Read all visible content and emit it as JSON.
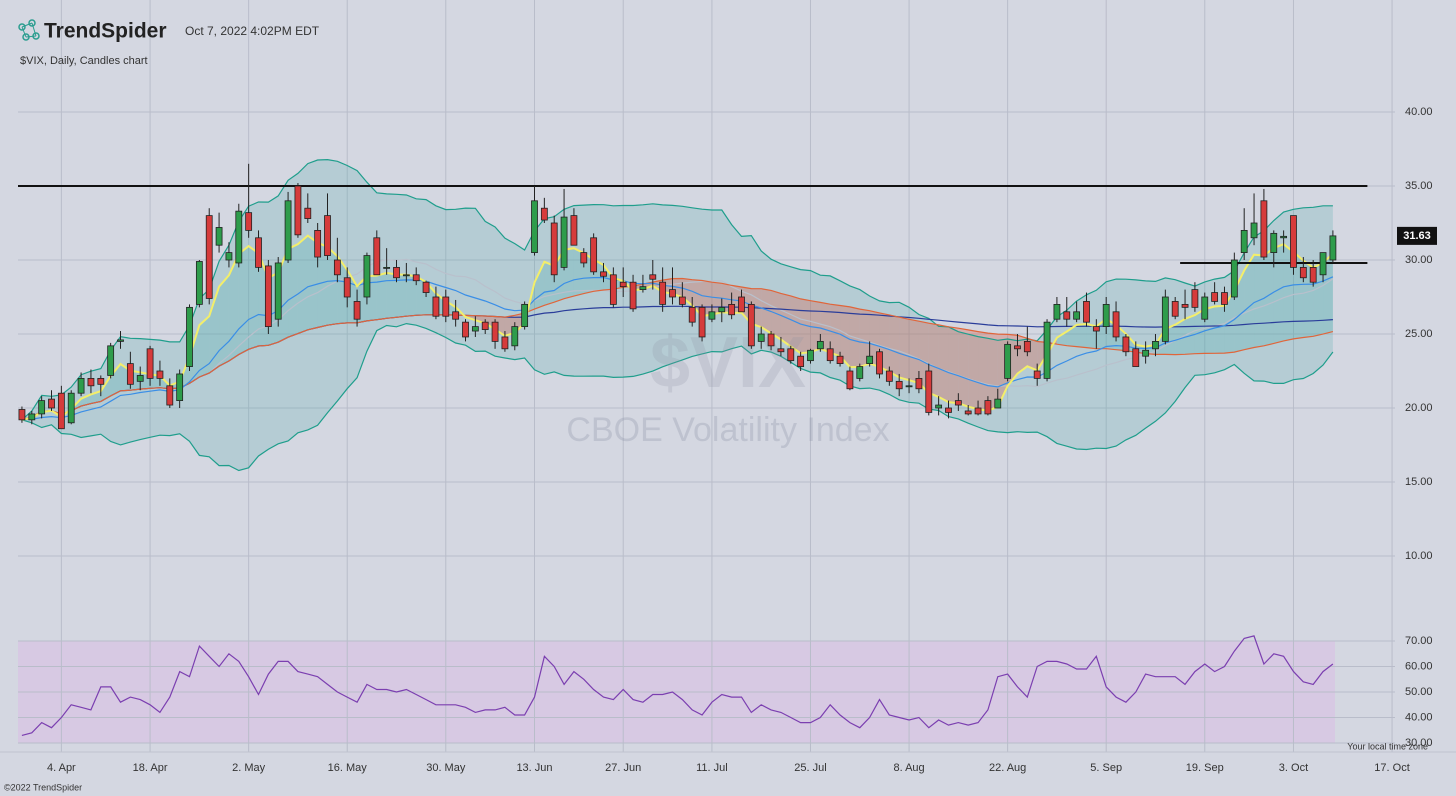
{
  "header": {
    "brand": "TrendSpider",
    "timestamp": "Oct 7, 2022 4:02PM EDT"
  },
  "footer": {
    "copyright": "©2022 TrendSpider",
    "timezone": "Your local time zone"
  },
  "chart_data": {
    "type": "candlestick",
    "subtitle": "$VIX, Daily, Candles chart",
    "watermark": "$VIX",
    "watermark_subtitle": "CBOE Volatility Index",
    "up_color": "#2e9c4b",
    "down_color": "#d63b3b",
    "candles": [
      [
        19.9,
        20.1,
        19.0,
        19.2
      ],
      [
        19.2,
        19.8,
        18.9,
        19.6
      ],
      [
        19.6,
        20.8,
        19.3,
        20.5
      ],
      [
        20.6,
        21.2,
        19.8,
        20.0
      ],
      [
        21.0,
        21.5,
        18.6,
        18.6
      ],
      [
        19.0,
        21.2,
        18.9,
        21.0
      ],
      [
        21.0,
        22.4,
        20.8,
        22.0
      ],
      [
        22.0,
        22.6,
        21.0,
        21.5
      ],
      [
        22.0,
        22.2,
        20.8,
        21.6
      ],
      [
        22.2,
        24.4,
        22.0,
        24.2
      ],
      [
        24.5,
        25.2,
        24.0,
        24.6
      ],
      [
        23.0,
        23.8,
        21.3,
        21.6
      ],
      [
        21.8,
        22.8,
        21.2,
        22.2
      ],
      [
        24.0,
        24.2,
        21.5,
        22.0
      ],
      [
        22.5,
        23.2,
        21.5,
        22.0
      ],
      [
        21.5,
        22.0,
        20.0,
        20.2
      ],
      [
        20.5,
        22.6,
        20.0,
        22.3
      ],
      [
        22.8,
        27.0,
        22.5,
        26.8
      ],
      [
        27.0,
        30.0,
        26.8,
        29.9
      ],
      [
        33.0,
        33.5,
        27.0,
        27.4
      ],
      [
        31.0,
        33.2,
        30.5,
        32.2
      ],
      [
        30.0,
        31.2,
        29.5,
        30.5
      ],
      [
        29.8,
        33.8,
        29.5,
        33.3
      ],
      [
        33.2,
        36.5,
        31.5,
        32.0
      ],
      [
        31.5,
        32.0,
        29.2,
        29.5
      ],
      [
        29.6,
        30.0,
        25.0,
        25.5
      ],
      [
        26.0,
        30.2,
        25.5,
        29.8
      ],
      [
        30.0,
        34.6,
        29.8,
        34.0
      ],
      [
        35.0,
        35.2,
        31.5,
        31.7
      ],
      [
        33.5,
        34.5,
        32.5,
        32.8
      ],
      [
        32.0,
        32.5,
        29.5,
        30.2
      ],
      [
        33.0,
        34.5,
        30.0,
        30.3
      ],
      [
        30.0,
        31.5,
        28.5,
        29.0
      ],
      [
        28.8,
        29.5,
        26.8,
        27.5
      ],
      [
        27.2,
        28.0,
        25.5,
        26.0
      ],
      [
        27.5,
        30.5,
        27.0,
        30.3
      ],
      [
        31.5,
        32.0,
        29.0,
        29.0
      ],
      [
        29.5,
        30.8,
        29.0,
        29.5
      ],
      [
        29.5,
        30.0,
        28.5,
        28.8
      ],
      [
        29.0,
        29.8,
        28.5,
        29.0
      ],
      [
        29.0,
        29.5,
        28.3,
        28.6
      ],
      [
        28.5,
        28.6,
        27.5,
        27.8
      ],
      [
        27.5,
        28.2,
        26.0,
        26.2
      ],
      [
        27.5,
        28.0,
        25.8,
        26.2
      ],
      [
        26.5,
        27.3,
        25.5,
        26.0
      ],
      [
        25.8,
        26.0,
        24.5,
        24.8
      ],
      [
        25.2,
        26.2,
        24.8,
        25.5
      ],
      [
        25.8,
        26.0,
        25.0,
        25.3
      ],
      [
        25.8,
        26.0,
        24.0,
        24.5
      ],
      [
        24.8,
        25.2,
        23.8,
        24.0
      ],
      [
        24.2,
        25.8,
        23.9,
        25.5
      ],
      [
        25.5,
        27.2,
        25.3,
        27.0
      ],
      [
        30.5,
        35.0,
        30.3,
        34.0
      ],
      [
        33.5,
        34.2,
        32.5,
        32.7
      ],
      [
        32.5,
        33.0,
        28.5,
        29.0
      ],
      [
        29.5,
        34.8,
        29.3,
        32.9
      ],
      [
        33.0,
        33.5,
        31.0,
        31.0
      ],
      [
        30.5,
        30.8,
        29.5,
        29.8
      ],
      [
        31.5,
        31.8,
        29.0,
        29.2
      ],
      [
        29.2,
        29.8,
        28.5,
        28.9
      ],
      [
        29.0,
        29.5,
        26.8,
        27.0
      ],
      [
        28.5,
        29.5,
        27.5,
        28.2
      ],
      [
        28.5,
        29.0,
        26.5,
        26.7
      ],
      [
        28.0,
        29.0,
        27.8,
        28.2
      ],
      [
        29.0,
        30.0,
        28.0,
        28.7
      ],
      [
        28.5,
        29.5,
        26.5,
        27.0
      ],
      [
        28.0,
        29.5,
        27.0,
        27.5
      ],
      [
        27.5,
        28.5,
        26.8,
        27.0
      ],
      [
        26.8,
        27.5,
        25.5,
        25.8
      ],
      [
        26.8,
        27.0,
        24.5,
        24.8
      ],
      [
        26.0,
        27.0,
        25.8,
        26.5
      ],
      [
        26.5,
        27.4,
        25.8,
        26.8
      ],
      [
        27.0,
        27.8,
        26.0,
        26.3
      ],
      [
        27.5,
        28.0,
        26.5,
        26.5
      ],
      [
        27.0,
        27.2,
        24.0,
        24.2
      ],
      [
        24.5,
        25.5,
        24.0,
        25.0
      ],
      [
        25.0,
        25.2,
        23.9,
        24.2
      ],
      [
        24.0,
        24.8,
        23.5,
        23.8
      ],
      [
        24.0,
        24.2,
        23.0,
        23.2
      ],
      [
        23.5,
        23.8,
        22.5,
        22.8
      ],
      [
        23.2,
        24.0,
        23.0,
        23.9
      ],
      [
        24.0,
        25.0,
        23.8,
        24.5
      ],
      [
        24.0,
        24.5,
        23.0,
        23.2
      ],
      [
        23.5,
        23.8,
        22.8,
        23.0
      ],
      [
        22.5,
        22.8,
        21.2,
        21.3
      ],
      [
        22.0,
        23.0,
        21.8,
        22.8
      ],
      [
        23.0,
        24.5,
        22.8,
        23.5
      ],
      [
        23.8,
        24.0,
        22.0,
        22.3
      ],
      [
        22.5,
        22.8,
        21.5,
        21.8
      ],
      [
        21.8,
        22.3,
        20.8,
        21.3
      ],
      [
        21.5,
        22.0,
        21.0,
        21.5
      ],
      [
        22.0,
        22.5,
        21.0,
        21.3
      ],
      [
        22.5,
        23.0,
        19.5,
        19.7
      ],
      [
        20.0,
        20.8,
        19.5,
        20.2
      ],
      [
        20.0,
        20.5,
        19.3,
        19.7
      ],
      [
        20.5,
        21.0,
        19.8,
        20.2
      ],
      [
        19.8,
        20.2,
        19.5,
        19.6
      ],
      [
        20.0,
        20.5,
        19.5,
        19.6
      ],
      [
        20.5,
        20.8,
        19.5,
        19.6
      ],
      [
        20.0,
        21.3,
        20.0,
        20.6
      ],
      [
        22.0,
        24.5,
        21.8,
        24.3
      ],
      [
        24.2,
        25.0,
        23.5,
        24.0
      ],
      [
        24.5,
        25.5,
        23.5,
        23.8
      ],
      [
        22.5,
        23.0,
        21.5,
        22.0
      ],
      [
        22.0,
        26.0,
        21.8,
        25.8
      ],
      [
        26.0,
        27.5,
        25.8,
        27.0
      ],
      [
        26.5,
        27.5,
        25.5,
        26.0
      ],
      [
        26.0,
        27.2,
        25.8,
        26.5
      ],
      [
        27.2,
        27.8,
        25.5,
        25.8
      ],
      [
        25.5,
        26.0,
        24.0,
        25.2
      ],
      [
        25.5,
        27.5,
        25.0,
        27.0
      ],
      [
        26.5,
        27.2,
        24.5,
        24.8
      ],
      [
        24.8,
        25.0,
        23.5,
        23.8
      ],
      [
        24.0,
        24.5,
        22.8,
        22.8
      ],
      [
        23.5,
        24.5,
        23.0,
        23.9
      ],
      [
        24.0,
        25.0,
        23.5,
        24.5
      ],
      [
        24.5,
        28.0,
        24.3,
        27.5
      ],
      [
        27.2,
        27.5,
        26.0,
        26.2
      ],
      [
        27.0,
        28.0,
        26.0,
        26.8
      ],
      [
        28.0,
        28.5,
        26.5,
        26.8
      ],
      [
        26.0,
        27.8,
        25.8,
        27.5
      ],
      [
        27.8,
        28.5,
        27.0,
        27.2
      ],
      [
        27.8,
        28.2,
        26.5,
        27.0
      ],
      [
        27.5,
        30.5,
        27.3,
        30.0
      ],
      [
        30.5,
        33.5,
        30.0,
        32.0
      ],
      [
        31.5,
        34.5,
        31.0,
        32.5
      ],
      [
        34.0,
        34.8,
        30.0,
        30.2
      ],
      [
        30.5,
        32.0,
        29.5,
        31.8
      ],
      [
        31.5,
        32.0,
        30.5,
        31.6
      ],
      [
        33.0,
        33.0,
        29.0,
        29.5
      ],
      [
        29.5,
        30.2,
        28.5,
        28.8
      ],
      [
        29.5,
        30.0,
        28.2,
        28.5
      ],
      [
        29.0,
        30.5,
        28.5,
        30.5
      ],
      [
        30.0,
        32.0,
        29.8,
        31.63
      ]
    ],
    "xlim": [
      -0.4,
      139.3
    ],
    "xticks": [
      {
        "value": 4,
        "label": "4. Apr"
      },
      {
        "value": 13,
        "label": "18. Apr"
      },
      {
        "value": 23,
        "label": "2. May"
      },
      {
        "value": 33,
        "label": "16. May"
      },
      {
        "value": 43,
        "label": "30. May"
      },
      {
        "value": 52,
        "label": "13. Jun"
      },
      {
        "value": 61,
        "label": "27. Jun"
      },
      {
        "value": 70,
        "label": "11. Jul"
      },
      {
        "value": 80,
        "label": "25. Jul"
      },
      {
        "value": 90,
        "label": "8. Aug"
      },
      {
        "value": 100,
        "label": "22. Aug"
      },
      {
        "value": 110,
        "label": "5. Sep"
      },
      {
        "value": 120,
        "label": "19. Sep"
      },
      {
        "value": 129,
        "label": "3. Oct"
      },
      {
        "value": 139,
        "label": "17. Oct"
      }
    ],
    "ylim": [
      6,
      46
    ],
    "yticks": [
      {
        "value": 10,
        "label": "10.00"
      },
      {
        "value": 15,
        "label": "15.00"
      },
      {
        "value": 20,
        "label": "20.00"
      },
      {
        "value": 25,
        "label": "25.00"
      },
      {
        "value": 30,
        "label": "30.00"
      },
      {
        "value": 35,
        "label": "35.00"
      },
      {
        "value": 40,
        "label": "40.00"
      }
    ],
    "levels": [
      35,
      29.8
    ],
    "grid": true,
    "rsi": {
      "color": "#7b3fb0",
      "values": [
        33,
        34,
        38,
        36,
        40,
        45,
        44,
        43,
        52,
        52,
        46,
        48,
        47,
        45,
        42,
        48,
        58,
        56,
        68,
        64,
        60,
        65,
        62,
        56,
        49,
        57,
        62,
        62,
        58,
        57,
        56,
        53,
        50,
        48,
        46,
        53,
        51,
        51,
        50,
        51,
        49,
        47,
        45,
        45,
        45,
        44,
        42,
        43,
        43,
        44,
        41,
        41,
        48,
        64,
        60,
        53,
        58,
        55,
        51,
        48,
        47,
        51,
        47,
        46,
        49,
        49,
        50,
        47,
        43,
        41,
        46,
        49,
        48,
        48,
        42,
        45,
        43,
        42,
        40,
        38,
        38,
        40,
        45,
        41,
        38,
        36,
        40,
        47,
        41,
        40,
        39,
        40,
        36,
        39,
        37,
        38,
        37,
        38,
        43,
        56,
        57,
        52,
        48,
        60,
        62,
        62,
        61,
        59,
        59,
        64,
        52,
        48,
        46,
        50,
        57,
        56,
        56,
        56,
        53,
        58,
        61,
        58,
        60,
        66,
        71,
        72,
        61,
        65,
        64,
        58,
        54,
        53,
        58,
        61
      ],
      "ylim": [
        28,
        72
      ],
      "yticks": [
        {
          "value": 30,
          "label": "30.00"
        },
        {
          "value": 40,
          "label": "40.00"
        },
        {
          "value": 50,
          "label": "50.00"
        },
        {
          "value": 60,
          "label": "60.00"
        },
        {
          "value": 70,
          "label": "70.00"
        }
      ]
    }
  }
}
